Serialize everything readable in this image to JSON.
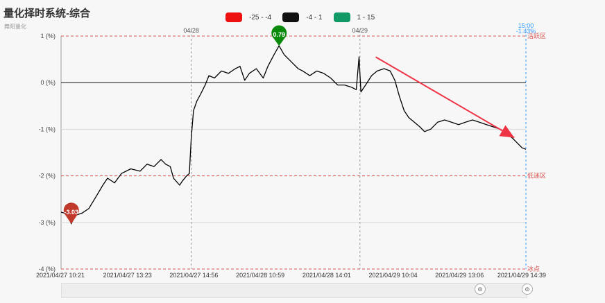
{
  "header": {
    "title": "量化择时系统-综合",
    "subtitle": "舞阳量化"
  },
  "legend": [
    {
      "label": "-25 - -4",
      "color": "#ee1111"
    },
    {
      "label": "-4 - 1",
      "color": "#111111"
    },
    {
      "label": "1 - 15",
      "color": "#119966"
    }
  ],
  "slider": {
    "left_handle_icon": "drag-handle-icon",
    "right_handle_icon": "drag-handle-icon"
  },
  "chart_data": {
    "type": "line",
    "ylim": [
      -4,
      1
    ],
    "y_ticks": [
      {
        "value": 1,
        "label": "1 (%)"
      },
      {
        "value": 0,
        "label": "0 (%)"
      },
      {
        "value": -1,
        "label": "-1 (%)"
      },
      {
        "value": -2,
        "label": "-2 (%)"
      },
      {
        "value": -3,
        "label": "-3 (%)"
      },
      {
        "value": -4,
        "label": "-4 (%)"
      }
    ],
    "x_labels": [
      "2021/04/27 10:21",
      "2021/04/27 13:23",
      "2021/04/27 14:56",
      "2021/04/28 10:59",
      "2021/04/28 14:01",
      "2021/04/29 10:04",
      "2021/04/29 13:06",
      "2021/04/29 14:39"
    ],
    "day_labels": [
      {
        "label": "04/28",
        "pos": 0.28
      },
      {
        "label": "04/29",
        "pos": 0.643
      }
    ],
    "zones": [
      {
        "value": 1,
        "label": "活跃区"
      },
      {
        "value": -2,
        "label": "低迷区"
      },
      {
        "value": -4,
        "label": "冰点"
      }
    ],
    "current": {
      "time": "15:00",
      "value_label": "-1.43%"
    },
    "max_marker": {
      "label": "0.79",
      "value": 0.79,
      "pos": 0.469
    },
    "min_marker": {
      "label": "-3.03",
      "value": -3.03,
      "pos": 0.022
    },
    "colors": {
      "line": "#000000",
      "zone": "#d9534f",
      "current": "#3399ff",
      "max": "#0a8a0a",
      "min": "#c0392b",
      "arrow": "#ee3344"
    },
    "points": [
      [
        0.0,
        -2.78
      ],
      [
        0.015,
        -2.82
      ],
      [
        0.022,
        -3.03
      ],
      [
        0.03,
        -2.85
      ],
      [
        0.045,
        -2.8
      ],
      [
        0.06,
        -2.7
      ],
      [
        0.075,
        -2.45
      ],
      [
        0.09,
        -2.2
      ],
      [
        0.1,
        -2.05
      ],
      [
        0.115,
        -2.15
      ],
      [
        0.13,
        -1.95
      ],
      [
        0.15,
        -1.85
      ],
      [
        0.17,
        -1.9
      ],
      [
        0.185,
        -1.75
      ],
      [
        0.2,
        -1.8
      ],
      [
        0.215,
        -1.65
      ],
      [
        0.225,
        -1.75
      ],
      [
        0.235,
        -1.8
      ],
      [
        0.242,
        -2.05
      ],
      [
        0.255,
        -2.2
      ],
      [
        0.262,
        -2.1
      ],
      [
        0.27,
        -2.0
      ],
      [
        0.276,
        -1.95
      ],
      [
        0.28,
        -1.2
      ],
      [
        0.285,
        -0.6
      ],
      [
        0.292,
        -0.4
      ],
      [
        0.3,
        -0.25
      ],
      [
        0.31,
        -0.05
      ],
      [
        0.318,
        0.15
      ],
      [
        0.33,
        0.1
      ],
      [
        0.345,
        0.25
      ],
      [
        0.36,
        0.2
      ],
      [
        0.375,
        0.3
      ],
      [
        0.385,
        0.35
      ],
      [
        0.395,
        0.05
      ],
      [
        0.405,
        0.2
      ],
      [
        0.42,
        0.3
      ],
      [
        0.435,
        0.1
      ],
      [
        0.445,
        0.35
      ],
      [
        0.458,
        0.6
      ],
      [
        0.469,
        0.79
      ],
      [
        0.48,
        0.6
      ],
      [
        0.49,
        0.5
      ],
      [
        0.5,
        0.4
      ],
      [
        0.51,
        0.3
      ],
      [
        0.52,
        0.25
      ],
      [
        0.535,
        0.15
      ],
      [
        0.55,
        0.25
      ],
      [
        0.565,
        0.2
      ],
      [
        0.58,
        0.1
      ],
      [
        0.595,
        -0.05
      ],
      [
        0.61,
        -0.05
      ],
      [
        0.625,
        -0.1
      ],
      [
        0.635,
        -0.15
      ],
      [
        0.641,
        0.55
      ],
      [
        0.645,
        -0.2
      ],
      [
        0.655,
        -0.05
      ],
      [
        0.668,
        0.15
      ],
      [
        0.68,
        0.25
      ],
      [
        0.695,
        0.3
      ],
      [
        0.708,
        0.25
      ],
      [
        0.718,
        0.05
      ],
      [
        0.728,
        -0.3
      ],
      [
        0.738,
        -0.6
      ],
      [
        0.748,
        -0.75
      ],
      [
        0.76,
        -0.85
      ],
      [
        0.772,
        -0.95
      ],
      [
        0.782,
        -1.05
      ],
      [
        0.795,
        -1.0
      ],
      [
        0.81,
        -0.85
      ],
      [
        0.825,
        -0.8
      ],
      [
        0.84,
        -0.85
      ],
      [
        0.855,
        -0.9
      ],
      [
        0.87,
        -0.85
      ],
      [
        0.885,
        -0.8
      ],
      [
        0.9,
        -0.85
      ],
      [
        0.915,
        -0.9
      ],
      [
        0.93,
        -0.95
      ],
      [
        0.945,
        -1.0
      ],
      [
        0.96,
        -1.1
      ],
      [
        0.972,
        -1.2
      ],
      [
        0.982,
        -1.3
      ],
      [
        0.992,
        -1.4
      ],
      [
        1.0,
        -1.43
      ]
    ]
  }
}
